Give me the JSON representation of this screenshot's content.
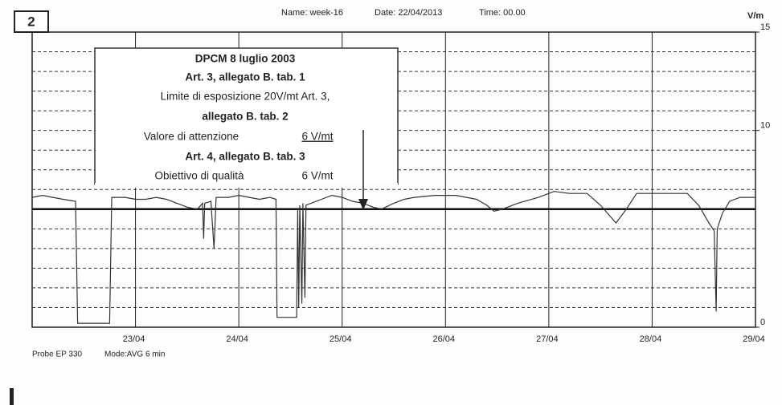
{
  "chart_data": {
    "type": "line",
    "panel_label": "2",
    "name": "Name: week-16",
    "date": "Date: 22/04/2013",
    "time": "Time: 00.00",
    "y_unit": "V/m",
    "probe": "Probe EP 330",
    "mode": "Mode:AVG  6 min",
    "xlim": [
      0,
      7
    ],
    "xticks": [
      {
        "value": 1,
        "label": "23/04"
      },
      {
        "value": 2,
        "label": "24/04"
      },
      {
        "value": 3,
        "label": "25/04"
      },
      {
        "value": 4,
        "label": "26/04"
      },
      {
        "value": 5,
        "label": "27/04"
      },
      {
        "value": 6,
        "label": "28/04"
      },
      {
        "value": 7,
        "label": "29/04"
      }
    ],
    "ylim": [
      0,
      15
    ],
    "yticks": [
      0,
      10,
      15
    ],
    "grid_step": 1,
    "grid": true,
    "threshold": 6,
    "series": [
      {
        "color": "#333333",
        "x": [
          0,
          0.1,
          0.2,
          0.3,
          0.42,
          0.44,
          0.75,
          0.77,
          0.9,
          1.0,
          1.1,
          1.2,
          1.3,
          1.4,
          1.5,
          1.6,
          1.65,
          1.66,
          1.67,
          1.73,
          1.76,
          1.78,
          1.9,
          2.0,
          2.1,
          2.2,
          2.3,
          2.36,
          2.37,
          2.56,
          2.57,
          2.58,
          2.59,
          2.61,
          2.62,
          2.64,
          2.65,
          2.7,
          2.8,
          2.9,
          3.0,
          3.1,
          3.2,
          3.3,
          3.38,
          3.5,
          3.6,
          3.7,
          3.9,
          4.1,
          4.3,
          4.4,
          4.47,
          4.55,
          4.7,
          4.9,
          5.05,
          5.2,
          5.37,
          5.5,
          5.6,
          5.65,
          5.75,
          5.85,
          6.0,
          6.34,
          6.45,
          6.55,
          6.6,
          6.62,
          6.63,
          6.68,
          6.75,
          6.85,
          7.0
        ],
        "values": [
          6.6,
          6.7,
          6.6,
          6.5,
          6.4,
          0.2,
          0.2,
          6.6,
          6.6,
          6.5,
          6.5,
          6.6,
          6.5,
          6.3,
          6.1,
          6.0,
          6.3,
          4.5,
          6.3,
          6.4,
          4.0,
          6.6,
          6.6,
          6.7,
          6.6,
          6.5,
          6.6,
          6.5,
          0.5,
          0.5,
          6.0,
          1.0,
          6.2,
          1.2,
          6.3,
          1.5,
          6.2,
          6.3,
          6.5,
          6.7,
          6.6,
          6.4,
          6.3,
          6.1,
          6.0,
          6.3,
          6.5,
          6.6,
          6.7,
          6.7,
          6.5,
          6.2,
          5.9,
          6.0,
          6.3,
          6.6,
          6.9,
          6.8,
          6.8,
          6.2,
          5.6,
          5.3,
          6.0,
          6.8,
          6.8,
          6.8,
          6.2,
          5.3,
          4.9,
          0.8,
          5.0,
          5.8,
          6.4,
          6.6,
          6.6
        ]
      }
    ],
    "annotation": {
      "lines": [
        "DPCM 8 luglio 2003",
        "Art. 3,  allegato B.  tab. 1",
        "Limite di esposizione   20V/mt Art. 3,",
        "allegato B.  tab. 2",
        "Art. 4,  allegato B.  tab. 3"
      ],
      "attention_label": "Valore di attenzione",
      "attention_value": "6 V/mt",
      "quality_label": "Obiettivo di qualità",
      "quality_value": "6 V/mt"
    }
  }
}
